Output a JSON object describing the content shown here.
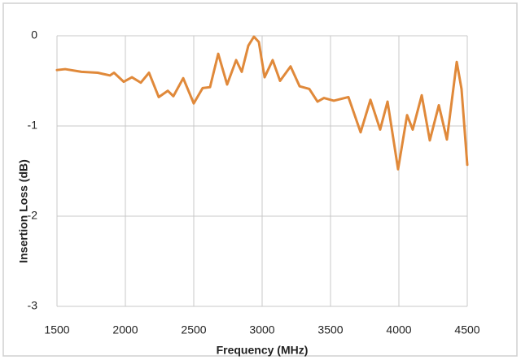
{
  "chart_data": {
    "type": "line",
    "xlabel": "Frequency (MHz)",
    "ylabel": "Insertion Loss (dB)",
    "x": [
      1500,
      1560,
      1679,
      1798,
      1887,
      1917,
      1988,
      2048,
      2113,
      2173,
      2244,
      2310,
      2351,
      2423,
      2500,
      2565,
      2619,
      2679,
      2744,
      2810,
      2851,
      2899,
      2940,
      2976,
      3018,
      3077,
      3131,
      3208,
      3274,
      3345,
      3405,
      3452,
      3524,
      3631,
      3720,
      3792,
      3863,
      3917,
      3994,
      4060,
      4101,
      4167,
      4226,
      4292,
      4351,
      4423,
      4458,
      4500
    ],
    "values": [
      -0.38,
      -0.37,
      -0.4,
      -0.41,
      -0.44,
      -0.41,
      -0.51,
      -0.46,
      -0.52,
      -0.41,
      -0.68,
      -0.61,
      -0.67,
      -0.47,
      -0.75,
      -0.58,
      -0.57,
      -0.2,
      -0.54,
      -0.27,
      -0.4,
      -0.11,
      -0.01,
      -0.07,
      -0.46,
      -0.27,
      -0.5,
      -0.34,
      -0.56,
      -0.59,
      -0.73,
      -0.69,
      -0.72,
      -0.68,
      -1.07,
      -0.71,
      -1.04,
      -0.73,
      -1.48,
      -0.88,
      -1.04,
      -0.66,
      -1.16,
      -0.77,
      -1.15,
      -0.29,
      -0.59,
      -1.43
    ],
    "color": "#e0893a",
    "xlim": [
      1500,
      4500
    ],
    "xticks": [
      1500,
      2000,
      2500,
      3000,
      3500,
      4000,
      4500
    ],
    "ylim": [
      -3,
      0
    ],
    "yticks": [
      0,
      -1,
      -2,
      -3
    ],
    "grid": true
  }
}
